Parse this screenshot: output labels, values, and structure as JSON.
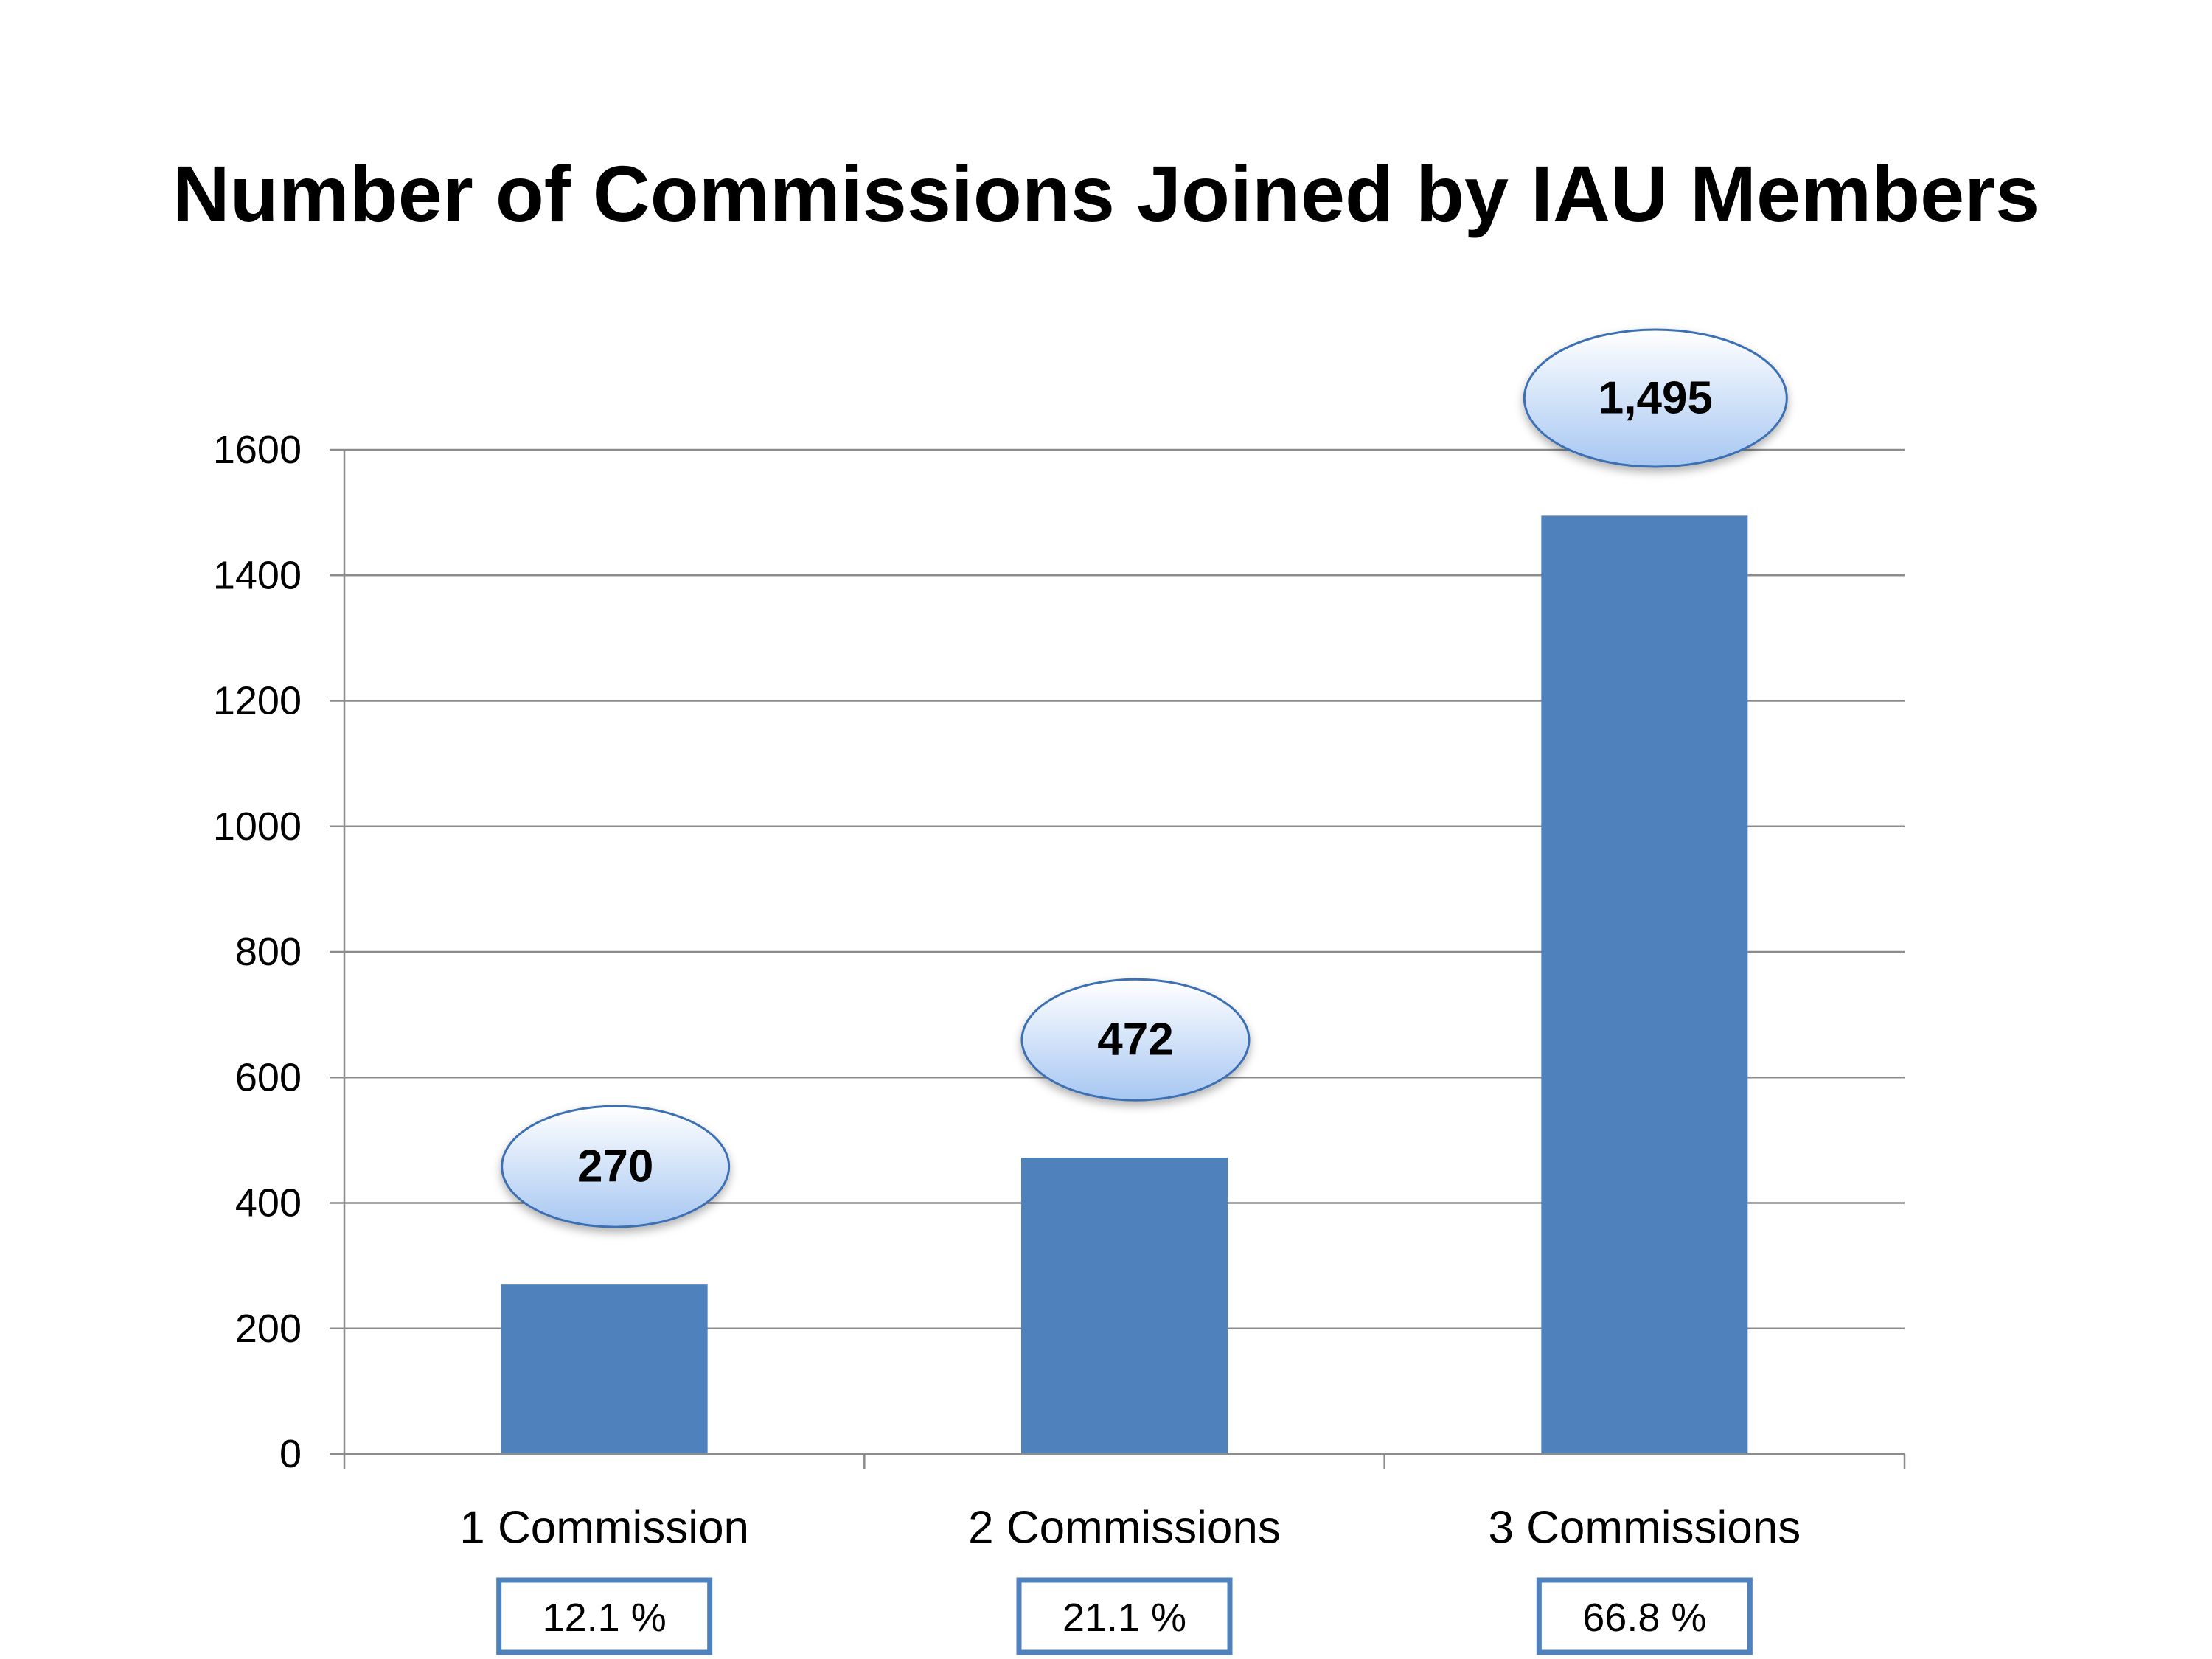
{
  "chart_data": {
    "type": "bar",
    "title": "Number of Commissions Joined by IAU Members",
    "xlabel": "",
    "ylabel": "",
    "categories": [
      "1 Commission",
      "2 Commissions",
      "3 Commissions"
    ],
    "values": [
      270,
      472,
      1495
    ],
    "value_labels": [
      "270",
      "472",
      "1,495"
    ],
    "percent_labels": [
      "12.1 %",
      "21.1 %",
      "66.8 %"
    ],
    "ylim": [
      0,
      1600
    ],
    "yticks": [
      0,
      200,
      400,
      600,
      800,
      1000,
      1200,
      1400,
      1600
    ],
    "grid": true,
    "legend": "none",
    "colors": {
      "bar": "#4F81BD",
      "grid": "#8C8C8C",
      "bubble_top": "#FFFFFF",
      "bubble_bottom": "#A7C7F2",
      "bubble_stroke": "#3C6FB3",
      "percent_box_stroke": "#4F81BD"
    }
  }
}
